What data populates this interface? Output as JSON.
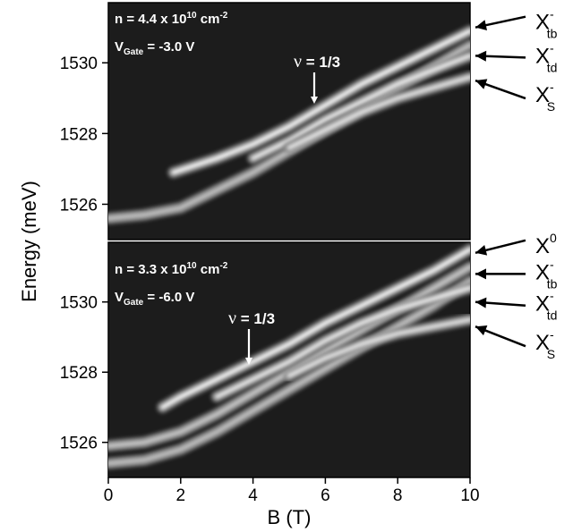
{
  "chart_data": [
    {
      "type": "heatmap",
      "panel": "top",
      "xlim": [
        0,
        10
      ],
      "ylim": [
        1525,
        1531.7
      ],
      "xticks": [],
      "yticks": [
        "1526",
        "1528",
        "1530"
      ],
      "annotation": {
        "density_prefix": "n = 4.4 x 10",
        "density_exp": "10",
        "density_unit": " cm",
        "density_unit_exp": "-2",
        "gate_main": "V",
        "gate_sub": "Gate",
        "gate_value": " = -3.0 V"
      },
      "filling_marker": {
        "symbol": "ν",
        "text": " = 1/3",
        "B": 5.8,
        "energy": 1528.6
      },
      "peak_labels": [
        {
          "main": "X",
          "sup": "-",
          "sub": "tb",
          "energy": 1531.0
        },
        {
          "main": "X",
          "sup": "-",
          "sub": "td",
          "energy": 1530.2
        },
        {
          "main": "X",
          "sup": "-",
          "sub": "S",
          "energy": 1529.5
        }
      ],
      "series": [
        {
          "B": [
            0,
            1,
            2,
            3,
            4,
            5,
            6,
            7,
            8,
            9,
            10
          ],
          "energy": [
            1525.6,
            1525.7,
            1525.9,
            1526.4,
            1526.9,
            1527.5,
            1528.1,
            1528.7,
            1529.3,
            1529.9,
            1530.5
          ],
          "intensity": 0.55
        },
        {
          "B": [
            1.8,
            3,
            4,
            5,
            6,
            7,
            8,
            9,
            10
          ],
          "energy": [
            1526.9,
            1527.3,
            1527.7,
            1528.2,
            1528.8,
            1529.4,
            1529.9,
            1530.4,
            1530.9
          ],
          "intensity": 0.95
        },
        {
          "B": [
            4,
            5,
            6,
            7,
            8,
            9,
            10
          ],
          "energy": [
            1527.3,
            1527.8,
            1528.4,
            1528.9,
            1529.4,
            1529.8,
            1530.2
          ],
          "intensity": 0.85
        },
        {
          "B": [
            5,
            6,
            7,
            8,
            9,
            10
          ],
          "energy": [
            1527.6,
            1528.1,
            1528.6,
            1529.0,
            1529.3,
            1529.6
          ],
          "intensity": 0.8
        }
      ]
    },
    {
      "type": "heatmap",
      "panel": "bottom",
      "xlabel": "B (T)",
      "ylabel": "Energy (meV)",
      "xlim": [
        0,
        10
      ],
      "ylim": [
        1525,
        1531.7
      ],
      "xticks": [
        "0",
        "2",
        "4",
        "6",
        "8",
        "10"
      ],
      "yticks": [
        "1526",
        "1528",
        "1530"
      ],
      "annotation": {
        "density_prefix": "n = 3.3 x 10",
        "density_exp": "10",
        "density_unit": " cm",
        "density_unit_exp": "-2",
        "gate_main": "V",
        "gate_sub": "Gate",
        "gate_value": " = -6.0 V"
      },
      "filling_marker": {
        "symbol": "ν",
        "text": " = 1/3",
        "B": 3.95,
        "energy": 1527.9
      },
      "peak_labels": [
        {
          "main": "X",
          "sup": "0",
          "sub": "",
          "energy": 1531.4
        },
        {
          "main": "X",
          "sup": "-",
          "sub": "tb",
          "energy": 1530.8
        },
        {
          "main": "X",
          "sup": "-",
          "sub": "td",
          "energy": 1530.0
        },
        {
          "main": "X",
          "sup": "-",
          "sub": "S",
          "energy": 1529.3
        }
      ],
      "series": [
        {
          "B": [
            0,
            1,
            2,
            3,
            4,
            5,
            6,
            7,
            8,
            9,
            10
          ],
          "energy": [
            1525.4,
            1525.5,
            1525.8,
            1526.3,
            1526.9,
            1527.5,
            1528.1,
            1528.7,
            1529.3,
            1529.9,
            1530.6
          ],
          "intensity": 0.55
        },
        {
          "B": [
            0,
            1,
            2,
            3,
            4,
            5,
            6,
            7,
            8,
            9,
            10
          ],
          "energy": [
            1525.9,
            1526.0,
            1526.3,
            1526.8,
            1527.4,
            1528.0,
            1528.6,
            1529.2,
            1529.8,
            1530.4,
            1531.0
          ],
          "intensity": 0.6
        },
        {
          "B": [
            1.5,
            2,
            3,
            4,
            5,
            6,
            7,
            8,
            9,
            10
          ],
          "energy": [
            1527.0,
            1527.3,
            1527.8,
            1528.3,
            1528.8,
            1529.4,
            1529.9,
            1530.4,
            1530.9,
            1531.5
          ],
          "intensity": 0.95
        },
        {
          "B": [
            3,
            4,
            5,
            6,
            7,
            8,
            9,
            10
          ],
          "energy": [
            1527.3,
            1527.8,
            1528.3,
            1528.9,
            1529.4,
            1529.8,
            1530.1,
            1530.4
          ],
          "intensity": 0.85
        },
        {
          "B": [
            5,
            6,
            7,
            8,
            9,
            10
          ],
          "energy": [
            1527.9,
            1528.4,
            1528.8,
            1529.1,
            1529.3,
            1529.5
          ],
          "intensity": 0.8
        }
      ]
    }
  ]
}
